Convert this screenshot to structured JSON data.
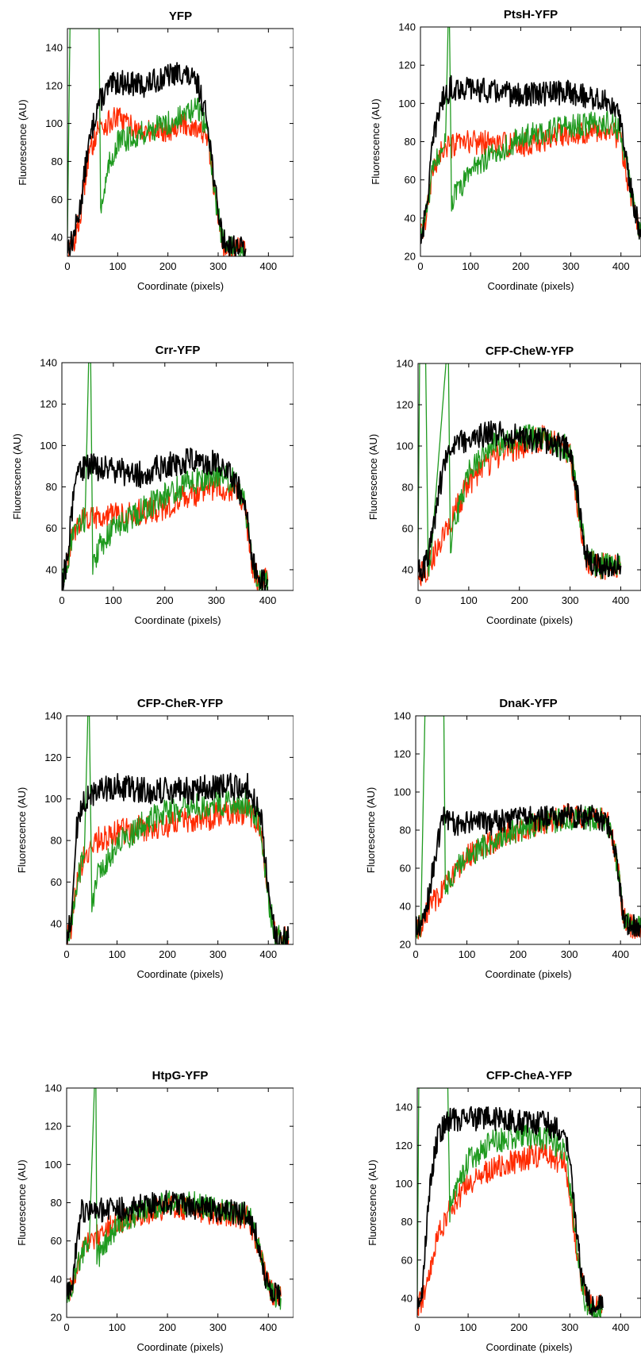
{
  "figure": {
    "colors": {
      "black_trace": "#000000",
      "red_trace": "#ff2a00",
      "green_trace": "#1f9a1f"
    }
  },
  "chart_data": [
    {
      "type": "line",
      "title": "YFP",
      "xlabel": "Coordinate (pixels)",
      "ylabel": "Fluorescence (AU)",
      "xlim": [
        0,
        450
      ],
      "ylim": [
        30,
        150
      ],
      "xticks": [
        0,
        100,
        200,
        300,
        400
      ],
      "yticks": [
        40,
        60,
        80,
        100,
        120,
        140
      ],
      "series": [
        {
          "color": "#000000",
          "x": [
            0,
            10,
            25,
            40,
            60,
            80,
            100,
            150,
            200,
            230,
            260,
            280,
            295,
            310,
            330,
            355
          ],
          "y": [
            35,
            38,
            55,
            85,
            110,
            118,
            122,
            120,
            125,
            127,
            120,
            100,
            62,
            38,
            36,
            34
          ]
        },
        {
          "color": "#ff2a00",
          "x": [
            0,
            10,
            25,
            40,
            60,
            80,
            100,
            150,
            200,
            230,
            260,
            280,
            295,
            310,
            330,
            355
          ],
          "y": [
            33,
            35,
            50,
            80,
            98,
            100,
            103,
            95,
            97,
            100,
            98,
            90,
            58,
            36,
            34,
            33
          ]
        },
        {
          "color": "#1f9a1f",
          "x": [
            0,
            5,
            8,
            60,
            63,
            66,
            70,
            85,
            100,
            150,
            200,
            230,
            260,
            280,
            295,
            310,
            330,
            355
          ],
          "y": [
            40,
            150,
            150,
            150,
            150,
            58,
            60,
            80,
            90,
            95,
            100,
            104,
            108,
            95,
            60,
            36,
            34,
            33
          ]
        }
      ]
    },
    {
      "type": "line",
      "title": "PtsH-YFP",
      "xlabel": "Coordinate (pixels)",
      "ylabel": "Fluorescence (AU)",
      "xlim": [
        0,
        440
      ],
      "ylim": [
        20,
        140
      ],
      "xticks": [
        0,
        100,
        200,
        300,
        400
      ],
      "yticks": [
        20,
        40,
        60,
        80,
        100,
        120,
        140
      ],
      "series": [
        {
          "color": "#000000",
          "x": [
            0,
            10,
            25,
            40,
            60,
            100,
            200,
            300,
            380,
            400,
            420,
            440
          ],
          "y": [
            30,
            40,
            80,
            100,
            108,
            108,
            104,
            106,
            100,
            90,
            55,
            30
          ]
        },
        {
          "color": "#ff2a00",
          "x": [
            0,
            10,
            25,
            40,
            60,
            100,
            200,
            300,
            380,
            400,
            420,
            440
          ],
          "y": [
            30,
            38,
            65,
            75,
            77,
            80,
            78,
            85,
            86,
            80,
            50,
            30
          ]
        },
        {
          "color": "#1f9a1f",
          "x": [
            0,
            10,
            25,
            40,
            50,
            55,
            58,
            62,
            80,
            100,
            200,
            300,
            380,
            400,
            420,
            440
          ],
          "y": [
            30,
            40,
            65,
            75,
            80,
            140,
            140,
            50,
            55,
            66,
            82,
            88,
            90,
            85,
            55,
            30
          ]
        }
      ]
    },
    {
      "type": "line",
      "title": "Crr-YFP",
      "xlabel": "Coordinate (pixels)",
      "ylabel": "Fluorescence (AU)",
      "xlim": [
        0,
        450
      ],
      "ylim": [
        30,
        140
      ],
      "xticks": [
        0,
        100,
        200,
        300,
        400
      ],
      "yticks": [
        40,
        60,
        80,
        100,
        120,
        140
      ],
      "series": [
        {
          "color": "#000000",
          "x": [
            0,
            10,
            20,
            30,
            50,
            100,
            150,
            200,
            250,
            300,
            340,
            355,
            370,
            385,
            400
          ],
          "y": [
            32,
            45,
            70,
            88,
            90,
            88,
            86,
            90,
            93,
            92,
            82,
            72,
            45,
            33,
            35
          ]
        },
        {
          "color": "#ff2a00",
          "x": [
            0,
            10,
            20,
            30,
            50,
            100,
            150,
            200,
            250,
            300,
            340,
            355,
            370,
            385,
            400
          ],
          "y": [
            32,
            42,
            55,
            62,
            64,
            66,
            68,
            70,
            76,
            80,
            78,
            70,
            42,
            33,
            35
          ]
        },
        {
          "color": "#1f9a1f",
          "x": [
            0,
            10,
            20,
            30,
            45,
            52,
            56,
            60,
            75,
            100,
            150,
            200,
            250,
            300,
            340,
            355,
            370,
            385,
            400
          ],
          "y": [
            32,
            42,
            55,
            62,
            64,
            140,
            140,
            40,
            52,
            60,
            68,
            76,
            82,
            86,
            82,
            72,
            44,
            33,
            35
          ]
        }
      ]
    },
    {
      "type": "line",
      "title": "CFP-CheW-YFP",
      "xlabel": "Coordinate (pixels)",
      "ylabel": "Fluorescence (AU)",
      "xlim": [
        0,
        440
      ],
      "ylim": [
        30,
        140
      ],
      "xticks": [
        0,
        100,
        200,
        300,
        400
      ],
      "yticks": [
        40,
        60,
        80,
        100,
        120,
        140
      ],
      "series": [
        {
          "color": "#000000",
          "x": [
            0,
            15,
            30,
            50,
            70,
            100,
            150,
            200,
            250,
            300,
            315,
            330,
            350,
            400
          ],
          "y": [
            40,
            42,
            60,
            90,
            100,
            104,
            106,
            104,
            102,
            98,
            75,
            48,
            42,
            42
          ]
        },
        {
          "color": "#ff2a00",
          "x": [
            0,
            15,
            30,
            50,
            70,
            100,
            150,
            200,
            250,
            300,
            315,
            330,
            350,
            400
          ],
          "y": [
            38,
            40,
            46,
            56,
            66,
            82,
            94,
            100,
            104,
            96,
            72,
            46,
            42,
            41
          ]
        },
        {
          "color": "#1f9a1f",
          "x": [
            0,
            3,
            6,
            15,
            20,
            25,
            55,
            60,
            64,
            70,
            100,
            150,
            200,
            250,
            300,
            315,
            330,
            350,
            400
          ],
          "y": [
            45,
            140,
            140,
            140,
            40,
            45,
            140,
            140,
            45,
            60,
            88,
            100,
            104,
            104,
            98,
            74,
            48,
            42,
            43
          ]
        }
      ]
    },
    {
      "type": "line",
      "title": "CFP-CheR-YFP",
      "xlabel": "Coordinate (pixels)",
      "ylabel": "Fluorescence (AU)",
      "xlim": [
        0,
        450
      ],
      "ylim": [
        30,
        140
      ],
      "xticks": [
        0,
        100,
        200,
        300,
        400
      ],
      "yticks": [
        40,
        60,
        80,
        100,
        120,
        140
      ],
      "series": [
        {
          "color": "#000000",
          "x": [
            0,
            10,
            20,
            35,
            60,
            100,
            150,
            200,
            250,
            300,
            360,
            385,
            400,
            415,
            440
          ],
          "y": [
            32,
            45,
            85,
            100,
            104,
            106,
            104,
            104,
            104,
            106,
            106,
            92,
            55,
            34,
            33
          ]
        },
        {
          "color": "#ff2a00",
          "x": [
            0,
            10,
            20,
            35,
            60,
            100,
            150,
            200,
            250,
            300,
            360,
            385,
            400,
            415,
            440
          ],
          "y": [
            31,
            40,
            60,
            72,
            80,
            84,
            86,
            88,
            90,
            92,
            94,
            85,
            52,
            33,
            32
          ]
        },
        {
          "color": "#1f9a1f",
          "x": [
            0,
            10,
            20,
            35,
            42,
            45,
            50,
            60,
            80,
            100,
            150,
            200,
            250,
            300,
            360,
            385,
            400,
            415,
            440
          ],
          "y": [
            31,
            40,
            60,
            72,
            140,
            140,
            50,
            62,
            70,
            78,
            88,
            94,
            96,
            98,
            98,
            88,
            52,
            33,
            32
          ]
        }
      ]
    },
    {
      "type": "line",
      "title": "DnaK-YFP",
      "xlabel": "Coordinate (pixels)",
      "ylabel": "Fluorescence (AU)",
      "xlim": [
        0,
        440
      ],
      "ylim": [
        20,
        140
      ],
      "xticks": [
        0,
        100,
        200,
        300,
        400
      ],
      "yticks": [
        20,
        40,
        60,
        80,
        100,
        120,
        140
      ],
      "series": [
        {
          "color": "#000000",
          "x": [
            0,
            10,
            25,
            40,
            55,
            80,
            100,
            150,
            200,
            250,
            300,
            360,
            380,
            395,
            405,
            420,
            440
          ],
          "y": [
            28,
            30,
            45,
            70,
            88,
            82,
            84,
            84,
            86,
            86,
            88,
            86,
            82,
            60,
            34,
            30,
            29
          ]
        },
        {
          "color": "#ff2a00",
          "x": [
            0,
            10,
            25,
            40,
            55,
            80,
            100,
            150,
            200,
            250,
            300,
            360,
            380,
            395,
            405,
            420,
            440
          ],
          "y": [
            28,
            30,
            38,
            44,
            50,
            58,
            66,
            74,
            80,
            84,
            88,
            86,
            82,
            60,
            34,
            30,
            29
          ]
        },
        {
          "color": "#1f9a1f",
          "x": [
            0,
            10,
            18,
            50,
            55,
            58,
            70,
            100,
            150,
            200,
            250,
            300,
            360,
            380,
            395,
            405,
            420,
            440
          ],
          "y": [
            28,
            30,
            140,
            140,
            140,
            48,
            56,
            66,
            74,
            80,
            84,
            86,
            86,
            82,
            60,
            34,
            30,
            29
          ]
        }
      ]
    },
    {
      "type": "line",
      "title": "HtpG-YFP",
      "xlabel": "Coordinate (pixels)",
      "ylabel": "Fluorescence (AU)",
      "xlim": [
        0,
        450
      ],
      "ylim": [
        20,
        140
      ],
      "xticks": [
        0,
        100,
        200,
        300,
        400
      ],
      "yticks": [
        20,
        40,
        60,
        80,
        100,
        120,
        140
      ],
      "series": [
        {
          "color": "#000000",
          "x": [
            0,
            10,
            20,
            30,
            40,
            100,
            150,
            200,
            250,
            300,
            360,
            380,
            395,
            410,
            425
          ],
          "y": [
            30,
            38,
            58,
            76,
            76,
            76,
            78,
            80,
            78,
            76,
            74,
            60,
            40,
            32,
            32
          ]
        },
        {
          "color": "#ff2a00",
          "x": [
            0,
            10,
            20,
            30,
            40,
            100,
            150,
            200,
            250,
            300,
            360,
            380,
            395,
            410,
            425
          ],
          "y": [
            30,
            36,
            46,
            54,
            58,
            70,
            74,
            78,
            76,
            74,
            72,
            58,
            40,
            32,
            31
          ]
        },
        {
          "color": "#1f9a1f",
          "x": [
            0,
            10,
            20,
            30,
            45,
            55,
            58,
            60,
            70,
            100,
            150,
            200,
            250,
            300,
            360,
            380,
            395,
            410,
            425
          ],
          "y": [
            30,
            36,
            46,
            54,
            60,
            140,
            140,
            50,
            56,
            68,
            76,
            80,
            80,
            76,
            74,
            60,
            40,
            32,
            30
          ]
        }
      ]
    },
    {
      "type": "line",
      "title": "CFP-CheA-YFP",
      "xlabel": "Coordinate (pixels)",
      "ylabel": "Fluorescence (AU)",
      "xlim": [
        0,
        440
      ],
      "ylim": [
        30,
        150
      ],
      "xticks": [
        0,
        100,
        200,
        300,
        400
      ],
      "yticks": [
        40,
        60,
        80,
        100,
        120,
        140
      ],
      "series": [
        {
          "color": "#000000",
          "x": [
            0,
            10,
            25,
            40,
            60,
            100,
            150,
            200,
            250,
            290,
            300,
            315,
            330,
            345,
            365
          ],
          "y": [
            35,
            45,
            100,
            125,
            133,
            134,
            134,
            132,
            132,
            126,
            110,
            70,
            42,
            36,
            35
          ]
        },
        {
          "color": "#ff2a00",
          "x": [
            0,
            10,
            25,
            40,
            60,
            100,
            150,
            200,
            250,
            290,
            300,
            315,
            330,
            345,
            365
          ],
          "y": [
            35,
            40,
            55,
            72,
            85,
            100,
            108,
            112,
            116,
            110,
            96,
            62,
            40,
            36,
            35
          ]
        },
        {
          "color": "#1f9a1f",
          "x": [
            0,
            3,
            8,
            55,
            60,
            64,
            75,
            100,
            150,
            200,
            250,
            290,
            300,
            315,
            330,
            345,
            365
          ],
          "y": [
            40,
            150,
            150,
            150,
            150,
            86,
            96,
            112,
            122,
            125,
            124,
            118,
            100,
            65,
            36,
            32,
            34
          ]
        }
      ]
    }
  ]
}
